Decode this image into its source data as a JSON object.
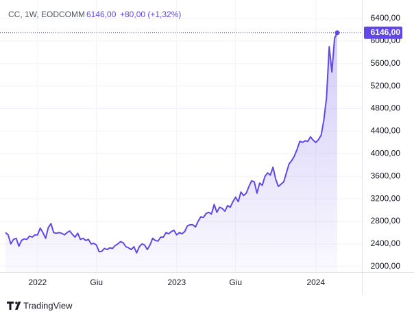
{
  "chart_data": {
    "type": "area",
    "header": {
      "symbol": "CC, 1W, EODCOMM",
      "last": "6146,00",
      "change": "+80,00 (+1,32%)"
    },
    "source": "TradingView",
    "color": "#6247e6",
    "values": [
      2600,
      2560,
      2400,
      2480,
      2500,
      2360,
      2460,
      2490,
      2480,
      2540,
      2520,
      2560,
      2560,
      2680,
      2600,
      2500,
      2690,
      2760,
      2600,
      2590,
      2600,
      2590,
      2560,
      2600,
      2630,
      2570,
      2520,
      2590,
      2480,
      2500,
      2460,
      2480,
      2400,
      2410,
      2380,
      2260,
      2270,
      2320,
      2300,
      2330,
      2320,
      2370,
      2400,
      2440,
      2420,
      2350,
      2330,
      2300,
      2350,
      2240,
      2350,
      2400,
      2380,
      2300,
      2380,
      2500,
      2460,
      2450,
      2520,
      2520,
      2600,
      2580,
      2620,
      2640,
      2560,
      2600,
      2580,
      2620,
      2720,
      2740,
      2740,
      2700,
      2800,
      2880,
      2870,
      2940,
      2960,
      2930,
      3100,
      2960,
      3050,
      3030,
      2980,
      3080,
      3050,
      3150,
      3230,
      3150,
      3320,
      3260,
      3300,
      3420,
      3520,
      3500,
      3300,
      3480,
      3440,
      3600,
      3660,
      3620,
      3760,
      3550,
      3420,
      3460,
      3500,
      3660,
      3820,
      3880,
      3960,
      4080,
      4220,
      4200,
      4230,
      4220,
      4300,
      4240,
      4200,
      4250,
      4330,
      4600,
      5000,
      5900,
      5450,
      6050,
      6146
    ],
    "xticks": [
      {
        "value": 12,
        "label": "2022"
      },
      {
        "value": 34,
        "label": "Giu"
      },
      {
        "value": 64,
        "label": "2023"
      },
      {
        "value": 86,
        "label": "Giu"
      },
      {
        "value": 116,
        "label": "2024"
      }
    ],
    "ylim": [
      1900,
      6630
    ],
    "yticks": [
      {
        "value": 2000,
        "label": "2000,00"
      },
      {
        "value": 2400,
        "label": "2400,00"
      },
      {
        "value": 2800,
        "label": "2800,00"
      },
      {
        "value": 3200,
        "label": "3200,00"
      },
      {
        "value": 3600,
        "label": "3600,00"
      },
      {
        "value": 4000,
        "label": "4000,00"
      },
      {
        "value": 4400,
        "label": "4400,00"
      },
      {
        "value": 4800,
        "label": "4800,00"
      },
      {
        "value": 5200,
        "label": "5200,00"
      },
      {
        "value": 5600,
        "label": "5600,00"
      },
      {
        "value": 6000,
        "label": "6000,00"
      },
      {
        "value": 6400,
        "label": "6400,00"
      }
    ],
    "grid": true
  }
}
